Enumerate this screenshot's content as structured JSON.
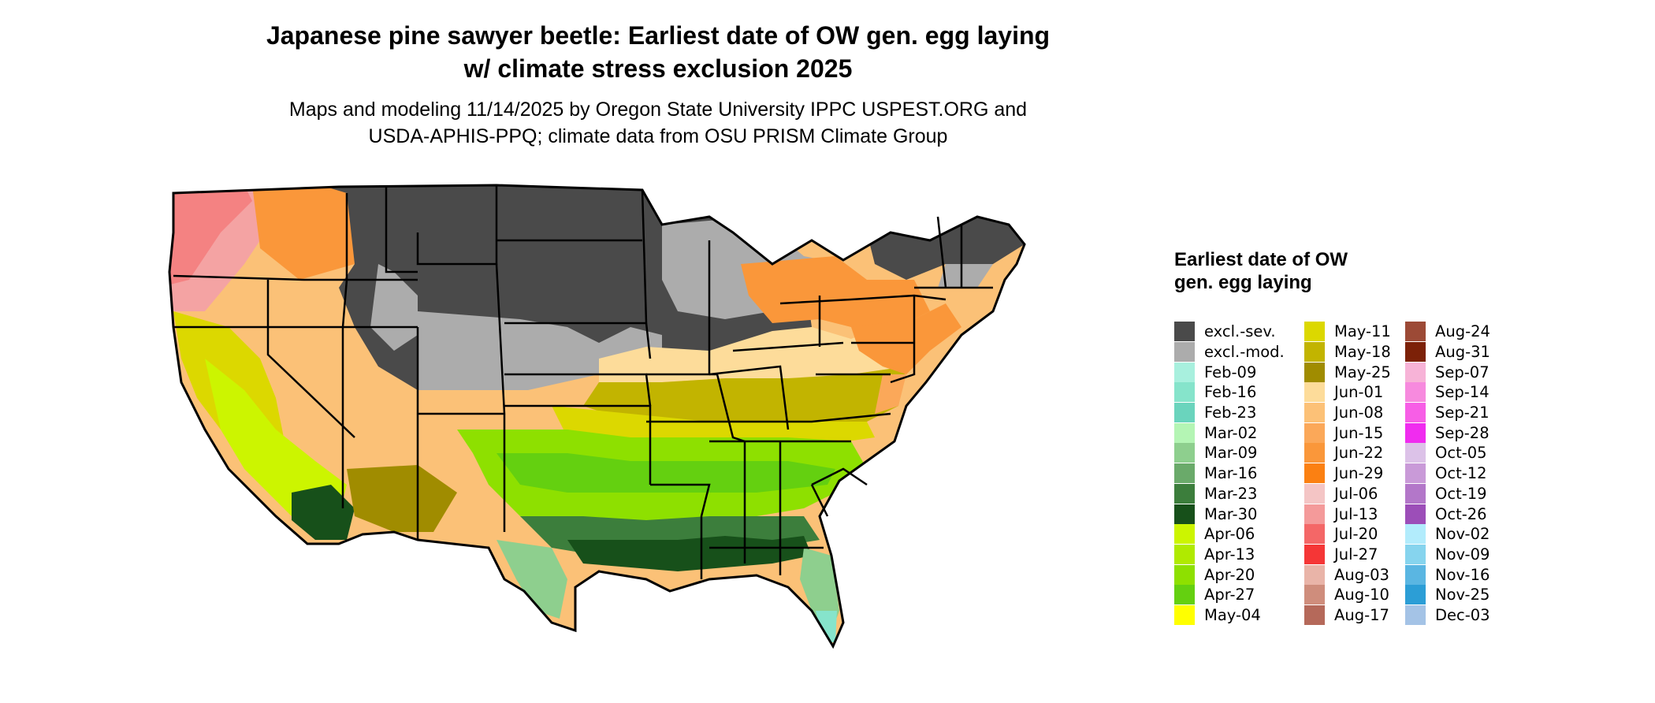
{
  "header": {
    "title_line1": "Japanese pine sawyer beetle: Earliest date of OW gen. egg laying",
    "title_line2": "w/ climate stress exclusion 2025",
    "subtitle_line1": "Maps and modeling 11/14/2025 by Oregon State University IPPC USPEST.ORG and",
    "subtitle_line2": "USDA-APHIS-PPQ; climate data from OSU PRISM Climate Group"
  },
  "legend": {
    "title": "Earliest date of OW gen. egg laying",
    "columns": [
      [
        {
          "label": "excl.-sev.",
          "color": "#4a4a4a"
        },
        {
          "label": "excl.-mod.",
          "color": "#acacac"
        },
        {
          "label": "Feb-09",
          "color": "#a8f0de"
        },
        {
          "label": "Feb-16",
          "color": "#86e4cb"
        },
        {
          "label": "Feb-23",
          "color": "#6ad4bd"
        },
        {
          "label": "Mar-02",
          "color": "#b4f5b4"
        },
        {
          "label": "Mar-09",
          "color": "#8ecf8e"
        },
        {
          "label": "Mar-16",
          "color": "#6aaa6a"
        },
        {
          "label": "Mar-23",
          "color": "#3c7e3c"
        },
        {
          "label": "Mar-30",
          "color": "#17501a"
        },
        {
          "label": "Apr-06",
          "color": "#ccf500"
        },
        {
          "label": "Apr-13",
          "color": "#b0ea00"
        },
        {
          "label": "Apr-20",
          "color": "#8ee000"
        },
        {
          "label": "Apr-27",
          "color": "#64d010"
        },
        {
          "label": "May-04",
          "color": "#ffff00"
        }
      ],
      [
        {
          "label": "May-11",
          "color": "#dcd800"
        },
        {
          "label": "May-18",
          "color": "#c2b400"
        },
        {
          "label": "May-25",
          "color": "#a08c00"
        },
        {
          "label": "Jun-01",
          "color": "#fddc9a"
        },
        {
          "label": "Jun-08",
          "color": "#fcc177"
        },
        {
          "label": "Jun-15",
          "color": "#fba859"
        },
        {
          "label": "Jun-22",
          "color": "#fa973a"
        },
        {
          "label": "Jun-29",
          "color": "#fb8012"
        },
        {
          "label": "Jul-06",
          "color": "#f4c5c5"
        },
        {
          "label": "Jul-13",
          "color": "#f49a9a"
        },
        {
          "label": "Jul-20",
          "color": "#f46767"
        },
        {
          "label": "Jul-27",
          "color": "#f53636"
        },
        {
          "label": "Aug-03",
          "color": "#e9b4a8"
        },
        {
          "label": "Aug-10",
          "color": "#cf8d7c"
        },
        {
          "label": "Aug-17",
          "color": "#b5695a"
        }
      ],
      [
        {
          "label": "Aug-24",
          "color": "#9c4a36"
        },
        {
          "label": "Aug-31",
          "color": "#7c2108"
        },
        {
          "label": "Sep-07",
          "color": "#f7b3d7"
        },
        {
          "label": "Sep-14",
          "color": "#f78ade"
        },
        {
          "label": "Sep-21",
          "color": "#f75ee6"
        },
        {
          "label": "Sep-28",
          "color": "#f02cef"
        },
        {
          "label": "Oct-05",
          "color": "#dcc2e8"
        },
        {
          "label": "Oct-12",
          "color": "#c99ad8"
        },
        {
          "label": "Oct-19",
          "color": "#b377c9"
        },
        {
          "label": "Oct-26",
          "color": "#9c4eb8"
        },
        {
          "label": "Nov-02",
          "color": "#b2ecfc"
        },
        {
          "label": "Nov-09",
          "color": "#86d4ee"
        },
        {
          "label": "Nov-16",
          "color": "#5ab6e2"
        },
        {
          "label": "Nov-25",
          "color": "#2c9ed6"
        },
        {
          "label": "Dec-03",
          "color": "#a4c3e6"
        }
      ]
    ]
  }
}
